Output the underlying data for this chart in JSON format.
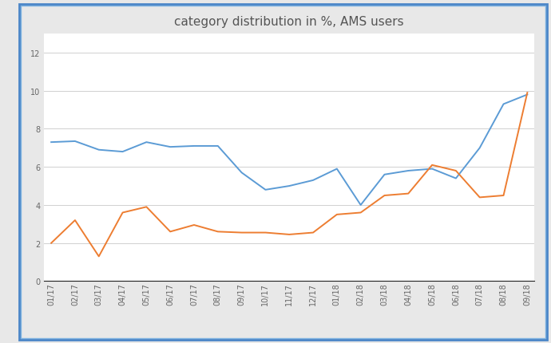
{
  "title": "category distribution in %, AMS users",
  "x_labels": [
    "01/17",
    "02/17",
    "03/17",
    "04/17",
    "05/17",
    "06/17",
    "07/17",
    "08/17",
    "09/17",
    "10/17",
    "11/17",
    "12/17",
    "01/18",
    "02/18",
    "03/18",
    "04/18",
    "05/18",
    "06/18",
    "07/18",
    "08/18",
    "09/18"
  ],
  "fake_apps": [
    7.3,
    7.35,
    6.9,
    6.8,
    7.3,
    7.05,
    7.1,
    7.1,
    5.7,
    4.8,
    5.0,
    5.3,
    5.9,
    4.0,
    5.6,
    5.8,
    5.9,
    5.4,
    7.0,
    9.3,
    9.8
  ],
  "bankers": [
    2.0,
    3.2,
    1.3,
    3.6,
    3.9,
    2.6,
    2.95,
    2.6,
    2.55,
    2.55,
    2.45,
    2.55,
    3.5,
    3.6,
    4.5,
    4.6,
    6.1,
    5.8,
    4.4,
    4.5,
    9.9
  ],
  "fake_apps_color": "#5b9bd5",
  "bankers_color": "#ed7d31",
  "ylim": [
    0,
    13
  ],
  "yticks": [
    0,
    2,
    4,
    6,
    8,
    10,
    12
  ],
  "background_color": "#e8e8e8",
  "plot_bg_color": "#ffffff",
  "grid_color": "#d0d0d0",
  "title_fontsize": 11,
  "tick_fontsize": 7,
  "legend_fontsize": 7.5,
  "outer_border_color": "#4a86c8",
  "inner_border_color": "#7ab0e0",
  "line_width": 1.4
}
